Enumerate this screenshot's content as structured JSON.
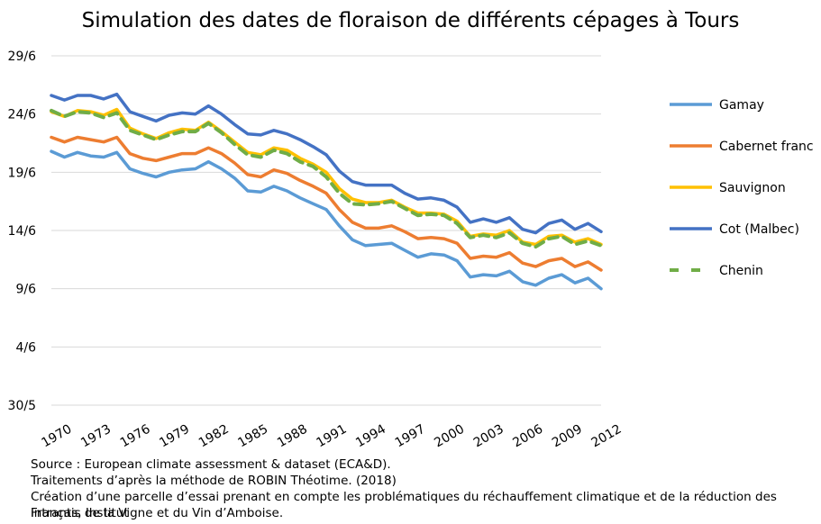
{
  "chart_data": {
    "type": "line",
    "title": "Simulation des dates de floraison de différents cépages à Tours",
    "xlabel": "",
    "ylabel": "",
    "x": [
      1970,
      1971,
      1972,
      1973,
      1974,
      1975,
      1976,
      1977,
      1978,
      1979,
      1980,
      1981,
      1982,
      1983,
      1984,
      1985,
      1986,
      1987,
      1988,
      1989,
      1990,
      1991,
      1992,
      1993,
      1994,
      1995,
      1996,
      1997,
      1998,
      1999,
      2000,
      2001,
      2002,
      2003,
      2004,
      2005,
      2006,
      2007,
      2008,
      2009,
      2010,
      2011,
      2012
    ],
    "x_ticks": [
      "1970",
      "1973",
      "1976",
      "1979",
      "1982",
      "1985",
      "1988",
      "1991",
      "1994",
      "1997",
      "2000",
      "2003",
      "2006",
      "2009",
      "2012"
    ],
    "y_ticks": [
      {
        "label": "30/5",
        "value": 0
      },
      {
        "label": "4/6",
        "value": 5
      },
      {
        "label": "9/6",
        "value": 10
      },
      {
        "label": "14/6",
        "value": 15
      },
      {
        "label": "19/6",
        "value": 20
      },
      {
        "label": "24/6",
        "value": 25
      },
      {
        "label": "29/6",
        "value": 30
      }
    ],
    "y_unit": "days after 30/5",
    "ylim": [
      0,
      30
    ],
    "grid": true,
    "legend_position": "right",
    "series": [
      {
        "name": "Gamay",
        "color": "#5B9BD5",
        "style": "solid",
        "values": [
          21.8,
          21.3,
          21.7,
          21.4,
          21.3,
          21.7,
          20.3,
          19.9,
          19.6,
          20.0,
          20.2,
          20.3,
          20.9,
          20.3,
          19.5,
          18.4,
          18.3,
          18.8,
          18.4,
          17.8,
          17.3,
          16.8,
          15.4,
          14.2,
          13.7,
          13.8,
          13.9,
          13.3,
          12.7,
          13.0,
          12.9,
          12.4,
          11.0,
          11.2,
          11.1,
          11.5,
          10.6,
          10.3,
          10.9,
          11.2,
          10.5,
          10.9,
          10.0
        ]
      },
      {
        "name": "Cabernet franc",
        "color": "#ED7D31",
        "style": "solid",
        "values": [
          23.0,
          22.6,
          23.0,
          22.8,
          22.6,
          23.0,
          21.6,
          21.2,
          21.0,
          21.3,
          21.6,
          21.6,
          22.1,
          21.6,
          20.8,
          19.8,
          19.6,
          20.2,
          19.9,
          19.3,
          18.8,
          18.2,
          16.8,
          15.7,
          15.2,
          15.2,
          15.4,
          14.9,
          14.3,
          14.4,
          14.3,
          13.9,
          12.6,
          12.8,
          12.7,
          13.1,
          12.2,
          11.9,
          12.4,
          12.6,
          11.9,
          12.3,
          11.6
        ]
      },
      {
        "name": "Sauvignon",
        "color": "#FFC000",
        "style": "solid",
        "values": [
          25.2,
          24.8,
          25.3,
          25.2,
          24.9,
          25.4,
          23.8,
          23.3,
          22.9,
          23.4,
          23.7,
          23.6,
          24.3,
          23.5,
          22.6,
          21.7,
          21.5,
          22.1,
          21.9,
          21.2,
          20.7,
          20.0,
          18.6,
          17.7,
          17.4,
          17.4,
          17.6,
          17.0,
          16.5,
          16.5,
          16.4,
          15.8,
          14.5,
          14.7,
          14.6,
          15.0,
          14.0,
          13.8,
          14.5,
          14.6,
          14.0,
          14.3,
          13.8
        ]
      },
      {
        "name": "Cot (Malbec)",
        "color": "#4472C4",
        "style": "solid",
        "values": [
          26.6,
          26.2,
          26.6,
          26.6,
          26.3,
          26.7,
          25.2,
          24.8,
          24.4,
          24.9,
          25.1,
          25.0,
          25.7,
          25.0,
          24.1,
          23.3,
          23.2,
          23.6,
          23.3,
          22.8,
          22.2,
          21.5,
          20.1,
          19.2,
          18.9,
          18.9,
          18.9,
          18.2,
          17.7,
          17.8,
          17.6,
          17.0,
          15.7,
          16.0,
          15.7,
          16.1,
          15.1,
          14.8,
          15.6,
          15.9,
          15.1,
          15.6,
          14.9
        ]
      },
      {
        "name": "Chenin",
        "color": "#70AD47",
        "style": "dashed",
        "values": [
          25.3,
          24.8,
          25.2,
          25.1,
          24.7,
          25.1,
          23.6,
          23.2,
          22.8,
          23.2,
          23.5,
          23.5,
          24.2,
          23.4,
          22.4,
          21.5,
          21.3,
          21.9,
          21.6,
          20.9,
          20.5,
          19.6,
          18.2,
          17.3,
          17.2,
          17.3,
          17.5,
          16.9,
          16.3,
          16.4,
          16.3,
          15.6,
          14.4,
          14.6,
          14.4,
          14.8,
          13.9,
          13.6,
          14.3,
          14.5,
          13.8,
          14.1,
          13.7
        ]
      }
    ]
  },
  "source_lines": [
    "Source : European climate assessment & dataset (ECA&D).",
    "Traitements d’après la méthode de ROBIN Théotime. (2018)",
    "Création d’une parcelle d’essai prenant en compte les problématiques du réchauffement climatique et de la réduction des intrants, Institut",
    "Français de la Vigne et du Vin d’Amboise."
  ]
}
